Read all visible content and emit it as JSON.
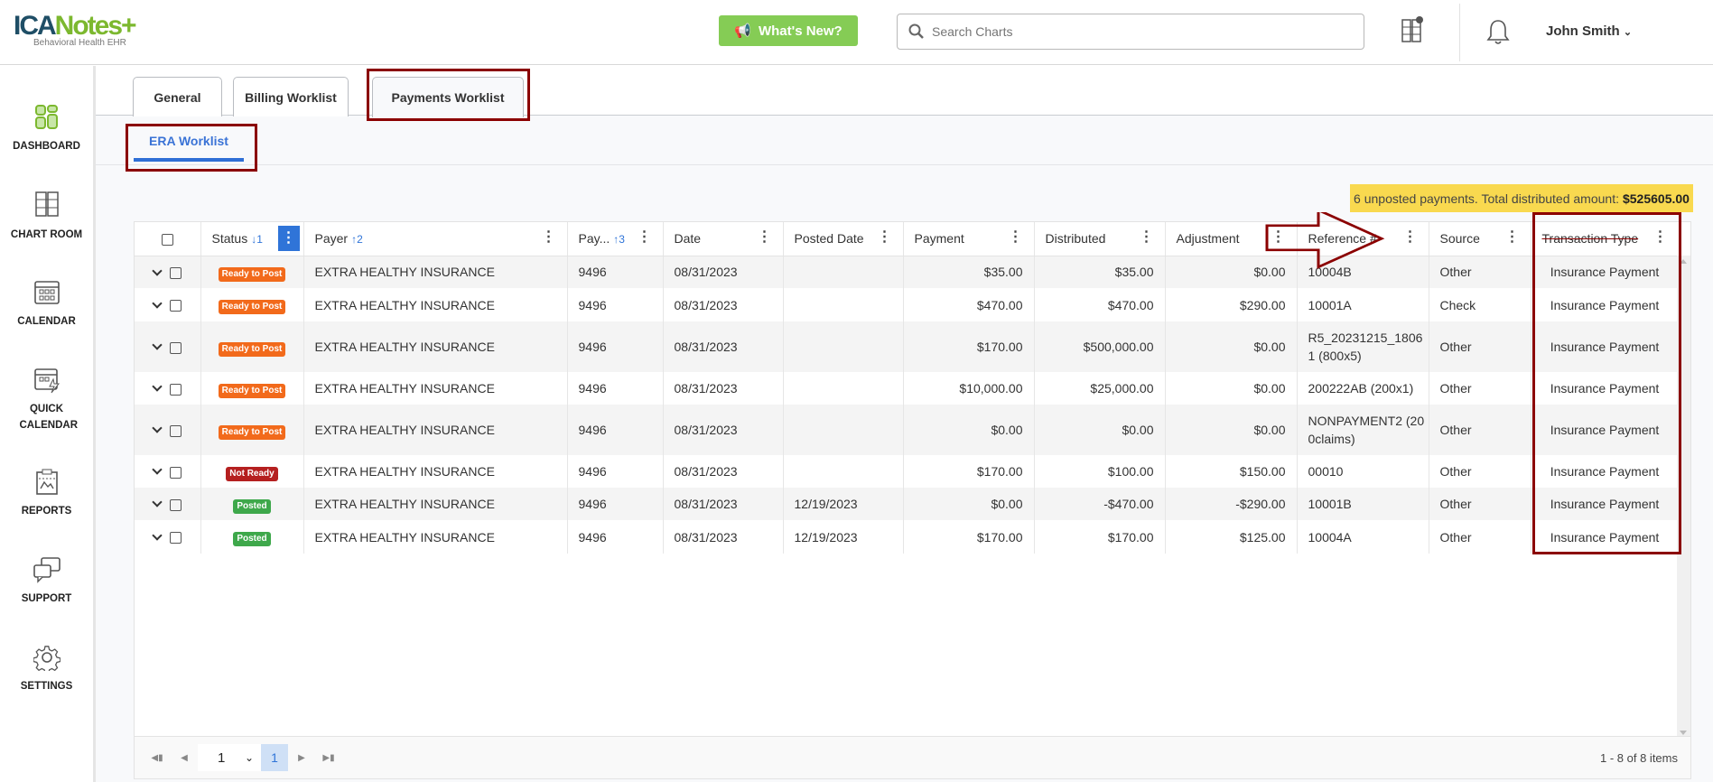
{
  "header": {
    "logo_main_a": "ICA",
    "logo_main_b": "Notes+",
    "logo_sub": "Behavioral Health EHR",
    "whats_new": "What's New?",
    "search_placeholder": "Search Charts",
    "user_name": "John Smith"
  },
  "sidebar": {
    "items": [
      {
        "label": "DASHBOARD",
        "icon": "dashboard-icon"
      },
      {
        "label": "CHART ROOM",
        "icon": "cabinet-icon"
      },
      {
        "label": "CALENDAR",
        "icon": "calendar-icon"
      },
      {
        "label": "QUICK CALENDAR",
        "icon": "quick-calendar-icon"
      },
      {
        "label": "REPORTS",
        "icon": "reports-icon"
      },
      {
        "label": "SUPPORT",
        "icon": "chat-icon"
      },
      {
        "label": "SETTINGS",
        "icon": "gear-icon"
      }
    ]
  },
  "tabs": [
    {
      "label": "General"
    },
    {
      "label": "Billing Worklist"
    },
    {
      "label": "Payments Worklist",
      "active": true
    }
  ],
  "subtab": {
    "label": "ERA Worklist"
  },
  "banner": {
    "text": "6 unposted payments. Total distributed amount:",
    "amount": "$525605.00"
  },
  "table": {
    "columns": [
      {
        "label": "",
        "key": "select"
      },
      {
        "label": "Status",
        "sort": "↓1",
        "menu_active": true
      },
      {
        "label": "Payer",
        "sort": "↑2"
      },
      {
        "label": "Pay...",
        "sort": "↑3"
      },
      {
        "label": "Date"
      },
      {
        "label": "Posted Date"
      },
      {
        "label": "Payment"
      },
      {
        "label": "Distributed"
      },
      {
        "label": "Adjustment"
      },
      {
        "label": "Reference #"
      },
      {
        "label": "Source"
      },
      {
        "label": "Transaction Type",
        "struck": true
      }
    ],
    "rows": [
      {
        "status": "Ready to Post",
        "payer": "EXTRA HEALTHY INSURANCE",
        "pay": "9496",
        "date": "08/31/2023",
        "posted": "",
        "payment": "$35.00",
        "distributed": "$35.00",
        "adjustment": "$0.00",
        "reference": "10004B",
        "source": "Other",
        "type": "Insurance Payment"
      },
      {
        "status": "Ready to Post",
        "payer": "EXTRA HEALTHY INSURANCE",
        "pay": "9496",
        "date": "08/31/2023",
        "posted": "",
        "payment": "$470.00",
        "distributed": "$470.00",
        "adjustment": "$290.00",
        "reference": "10001A",
        "source": "Check",
        "type": "Insurance Payment"
      },
      {
        "status": "Ready to Post",
        "payer": "EXTRA HEALTHY INSURANCE",
        "pay": "9496",
        "date": "08/31/2023",
        "posted": "",
        "payment": "$170.00",
        "distributed": "$500,000.00",
        "adjustment": "$0.00",
        "reference": "R5_20231215_18061 (800x5)",
        "source": "Other",
        "type": "Insurance Payment"
      },
      {
        "status": "Ready to Post",
        "payer": "EXTRA HEALTHY INSURANCE",
        "pay": "9496",
        "date": "08/31/2023",
        "posted": "",
        "payment": "$10,000.00",
        "distributed": "$25,000.00",
        "adjustment": "$0.00",
        "reference": "200222AB (200x1)",
        "source": "Other",
        "type": "Insurance Payment"
      },
      {
        "status": "Ready to Post",
        "payer": "EXTRA HEALTHY INSURANCE",
        "pay": "9496",
        "date": "08/31/2023",
        "posted": "",
        "payment": "$0.00",
        "distributed": "$0.00",
        "adjustment": "$0.00",
        "reference": "NONPAYMENT2 (200claims)",
        "source": "Other",
        "type": "Insurance Payment"
      },
      {
        "status": "Not Ready",
        "payer": "EXTRA HEALTHY INSURANCE",
        "pay": "9496",
        "date": "08/31/2023",
        "posted": "",
        "payment": "$170.00",
        "distributed": "$100.00",
        "adjustment": "$150.00",
        "reference": "00010",
        "source": "Other",
        "type": "Insurance Payment"
      },
      {
        "status": "Posted",
        "payer": "EXTRA HEALTHY INSURANCE",
        "pay": "9496",
        "date": "08/31/2023",
        "posted": "12/19/2023",
        "payment": "$0.00",
        "distributed": "-$470.00",
        "adjustment": "-$290.00",
        "reference": "10001B",
        "source": "Other",
        "type": "Insurance Payment"
      },
      {
        "status": "Posted",
        "payer": "EXTRA HEALTHY INSURANCE",
        "pay": "9496",
        "date": "08/31/2023",
        "posted": "12/19/2023",
        "payment": "$170.00",
        "distributed": "$170.00",
        "adjustment": "$125.00",
        "reference": "10004A",
        "source": "Other",
        "type": "Insurance Payment"
      }
    ],
    "status_colors": {
      "Ready to Post": "#f26a1b",
      "Not Ready": "#b52020",
      "Posted": "#3ea84b"
    }
  },
  "pager": {
    "page_select": "1",
    "current_page": "1",
    "info": "1 - 8 of 8 items"
  },
  "colors": {
    "accent": "#2f74d8",
    "annotation": "#8b0000",
    "banner": "#f9d94f",
    "whats_new": "#85cc55"
  }
}
